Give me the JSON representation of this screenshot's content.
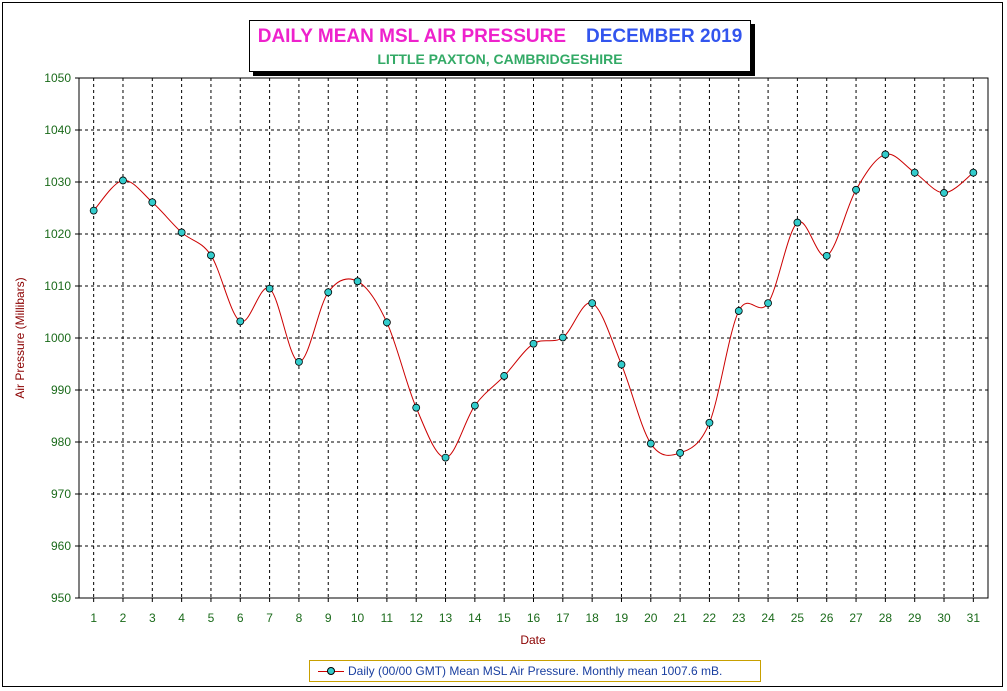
{
  "chart_data": {
    "type": "line",
    "title": "DAILY MEAN MSL AIR PRESSURE",
    "title_month": "DECEMBER 2019",
    "subtitle": "LITTLE PAXTON, CAMBRIDGESHIRE",
    "xlabel": "Date",
    "ylabel": "Air Pressure (Millibars)",
    "ylim": [
      950,
      1050
    ],
    "yticks": [
      950,
      960,
      970,
      980,
      990,
      1000,
      1010,
      1020,
      1030,
      1040,
      1050
    ],
    "x": [
      1,
      2,
      3,
      4,
      5,
      6,
      7,
      8,
      9,
      10,
      11,
      12,
      13,
      14,
      15,
      16,
      17,
      18,
      19,
      20,
      21,
      22,
      23,
      24,
      25,
      26,
      27,
      28,
      29,
      30,
      31
    ],
    "grid": true,
    "legend_position": "bottom",
    "series": [
      {
        "name": "Daily (00/00 GMT) Mean MSL Air Pressure. Monthly mean 1007.6 mB.",
        "values": [
          1024.5,
          1030.3,
          1026.1,
          1020.3,
          1015.9,
          1003.2,
          1009.5,
          995.4,
          1008.8,
          1010.9,
          1003.0,
          986.6,
          977.0,
          987.0,
          992.7,
          998.9,
          1000.1,
          1006.7,
          994.9,
          979.7,
          977.9,
          983.7,
          1005.2,
          1006.7,
          1022.2,
          1015.8,
          1028.5,
          1035.3,
          1031.8,
          1027.9,
          1031.8
        ]
      }
    ],
    "colors": {
      "line": "#cc0000",
      "marker": "#33cccc",
      "axis_text": "#1a6a1a",
      "label": "#8b0000",
      "legend_text": "#1a3fa0"
    }
  }
}
